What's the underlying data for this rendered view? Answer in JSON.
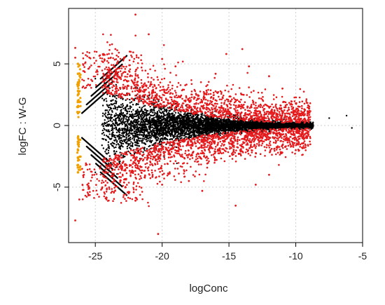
{
  "chart_data": {
    "type": "scatter",
    "chart_kind": "MA plot",
    "xlabel": "logConc",
    "ylabel": "logFC : W-G",
    "xlim": [
      -27,
      -5
    ],
    "ylim": [
      -9.5,
      9.5
    ],
    "xticks": [
      -25,
      -20,
      -15,
      -10,
      -5
    ],
    "yticks": [
      -5,
      0,
      5
    ],
    "grid": true,
    "series": [
      {
        "role": "not significant",
        "color": "#000000",
        "summary": "dense funnel-shaped cloud; |logFC| narrows from about 3.5 at logConc -25 to about 0.3 at logConc -9",
        "points": [
          [
            -25,
            3.8
          ],
          [
            -25,
            -3.8
          ],
          [
            -24,
            3.2
          ],
          [
            -24,
            -3.2
          ],
          [
            -22,
            2.2
          ],
          [
            -22,
            -2.2
          ],
          [
            -20,
            1.4
          ],
          [
            -20,
            -1.4
          ],
          [
            -18,
            1.0
          ],
          [
            -18,
            -1.0
          ],
          [
            -15,
            0.7
          ],
          [
            -15,
            -0.7
          ],
          [
            -12,
            0.5
          ],
          [
            -12,
            -0.5
          ],
          [
            -10,
            0.3
          ],
          [
            -10,
            -0.3
          ],
          [
            -7.5,
            0.6
          ],
          [
            -6.2,
            0.8
          ],
          [
            -5.8,
            -0.2
          ]
        ]
      },
      {
        "role": "differentially expressed",
        "color": "#e41a1c",
        "summary": "red points outside the black band from logConc -26.5 to -9, mostly within |logFC| 1-4",
        "points": [
          [
            -26.5,
            6.3
          ],
          [
            -26.5,
            5.5
          ],
          [
            -26.5,
            -7.7
          ],
          [
            -26.2,
            -6.0
          ],
          [
            -25.6,
            -4.8
          ],
          [
            -24.5,
            -5.1
          ],
          [
            -23.5,
            6.2
          ],
          [
            -22,
            9.0
          ],
          [
            -22,
            -6.1
          ],
          [
            -21,
            7.4
          ],
          [
            -20.3,
            -8.8
          ],
          [
            -20,
            5.4
          ],
          [
            -20,
            -4.8
          ],
          [
            -19,
            4.8
          ],
          [
            -18,
            -4.5
          ],
          [
            -17,
            -5.3
          ],
          [
            -16,
            4.2
          ],
          [
            -15.2,
            5.8
          ],
          [
            -14.5,
            -6.5
          ],
          [
            -14,
            6.2
          ],
          [
            -13.5,
            4.8
          ],
          [
            -13,
            -4.8
          ],
          [
            -12,
            4.0
          ],
          [
            -12,
            -4.0
          ],
          [
            -11,
            3.0
          ],
          [
            -10,
            1.8
          ],
          [
            -10,
            -2.0
          ],
          [
            -9.5,
            1.0
          ]
        ]
      },
      {
        "role": "zero count in one group",
        "color": "#f0a000",
        "summary": "orange column of points at logConc about -26.3 with logFC from -3.8 to 5.0",
        "points": [
          [
            -26.3,
            5.0
          ],
          [
            -26.3,
            4.2
          ],
          [
            -26.3,
            3.5
          ],
          [
            -26.3,
            2.8
          ],
          [
            -26.3,
            2.0
          ],
          [
            -26.3,
            1.5
          ],
          [
            -26.3,
            1.0
          ],
          [
            -26.3,
            -1.0
          ],
          [
            -26.3,
            -1.5
          ],
          [
            -26.3,
            -2.0
          ],
          [
            -26.3,
            -2.6
          ],
          [
            -26.3,
            -3.2
          ],
          [
            -26.3,
            -3.8
          ]
        ]
      }
    ]
  }
}
